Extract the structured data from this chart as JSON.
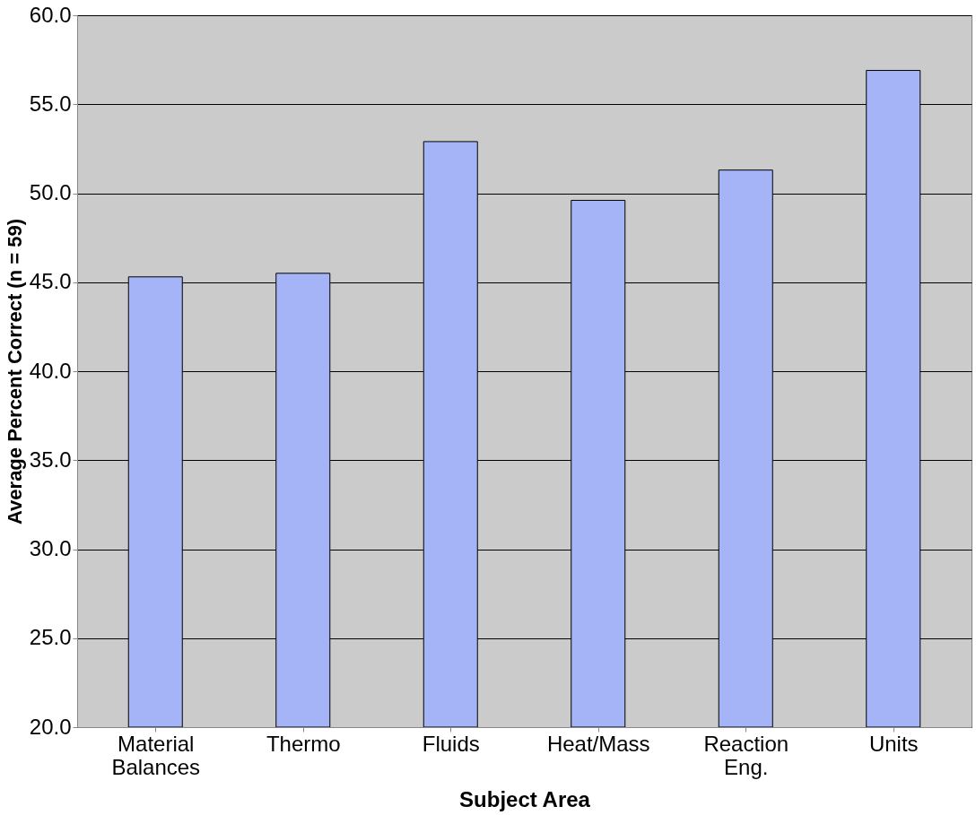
{
  "chart_data": {
    "type": "bar",
    "xlabel": "Subject Area",
    "ylabel": "Average Percent Correct (n = 59)",
    "categories": [
      "Material Balances",
      "Thermo",
      "Fluids",
      "Heat/Mass",
      "Reaction Eng.",
      "Units"
    ],
    "values": [
      45.3,
      45.5,
      52.9,
      49.6,
      51.3,
      56.9
    ],
    "color": "#a4b4f6",
    "ylim": [
      20,
      60
    ],
    "yticks": [
      {
        "value": 20,
        "label": "20.0"
      },
      {
        "value": 25,
        "label": "25.0"
      },
      {
        "value": 30,
        "label": "30.0"
      },
      {
        "value": 35,
        "label": "35.0"
      },
      {
        "value": 40,
        "label": "40.0"
      },
      {
        "value": 45,
        "label": "45.0"
      },
      {
        "value": 50,
        "label": "50.0"
      },
      {
        "value": 55,
        "label": "55.0"
      },
      {
        "value": 60,
        "label": "60.0"
      }
    ],
    "grid": "y"
  }
}
